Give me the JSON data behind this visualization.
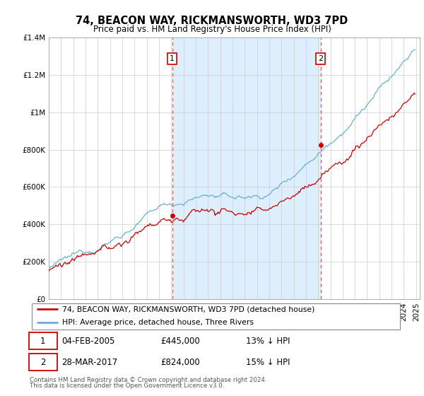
{
  "title": "74, BEACON WAY, RICKMANSWORTH, WD3 7PD",
  "subtitle": "Price paid vs. HM Land Registry's House Price Index (HPI)",
  "legend_line1": "74, BEACON WAY, RICKMANSWORTH, WD3 7PD (detached house)",
  "legend_line2": "HPI: Average price, detached house, Three Rivers",
  "annotation1_label": "1",
  "annotation1_date": "04-FEB-2005",
  "annotation1_price": "£445,000",
  "annotation1_hpi": "13% ↓ HPI",
  "annotation2_label": "2",
  "annotation2_date": "28-MAR-2017",
  "annotation2_price": "£824,000",
  "annotation2_hpi": "15% ↓ HPI",
  "footnote1": "Contains HM Land Registry data © Crown copyright and database right 2024.",
  "footnote2": "This data is licensed under the Open Government Licence v3.0.",
  "hpi_color": "#6baed6",
  "price_color": "#cc0000",
  "vline_color": "#e06060",
  "shade_color": "#ddeeff",
  "ylim": [
    0,
    1400000
  ],
  "yticks": [
    0,
    200000,
    400000,
    600000,
    800000,
    1000000,
    1200000,
    1400000
  ],
  "start_year": 1995,
  "end_year": 2025,
  "sale1_year": 2005.083,
  "sale2_year": 2017.208,
  "sale1_price": 445000,
  "sale2_price": 824000
}
